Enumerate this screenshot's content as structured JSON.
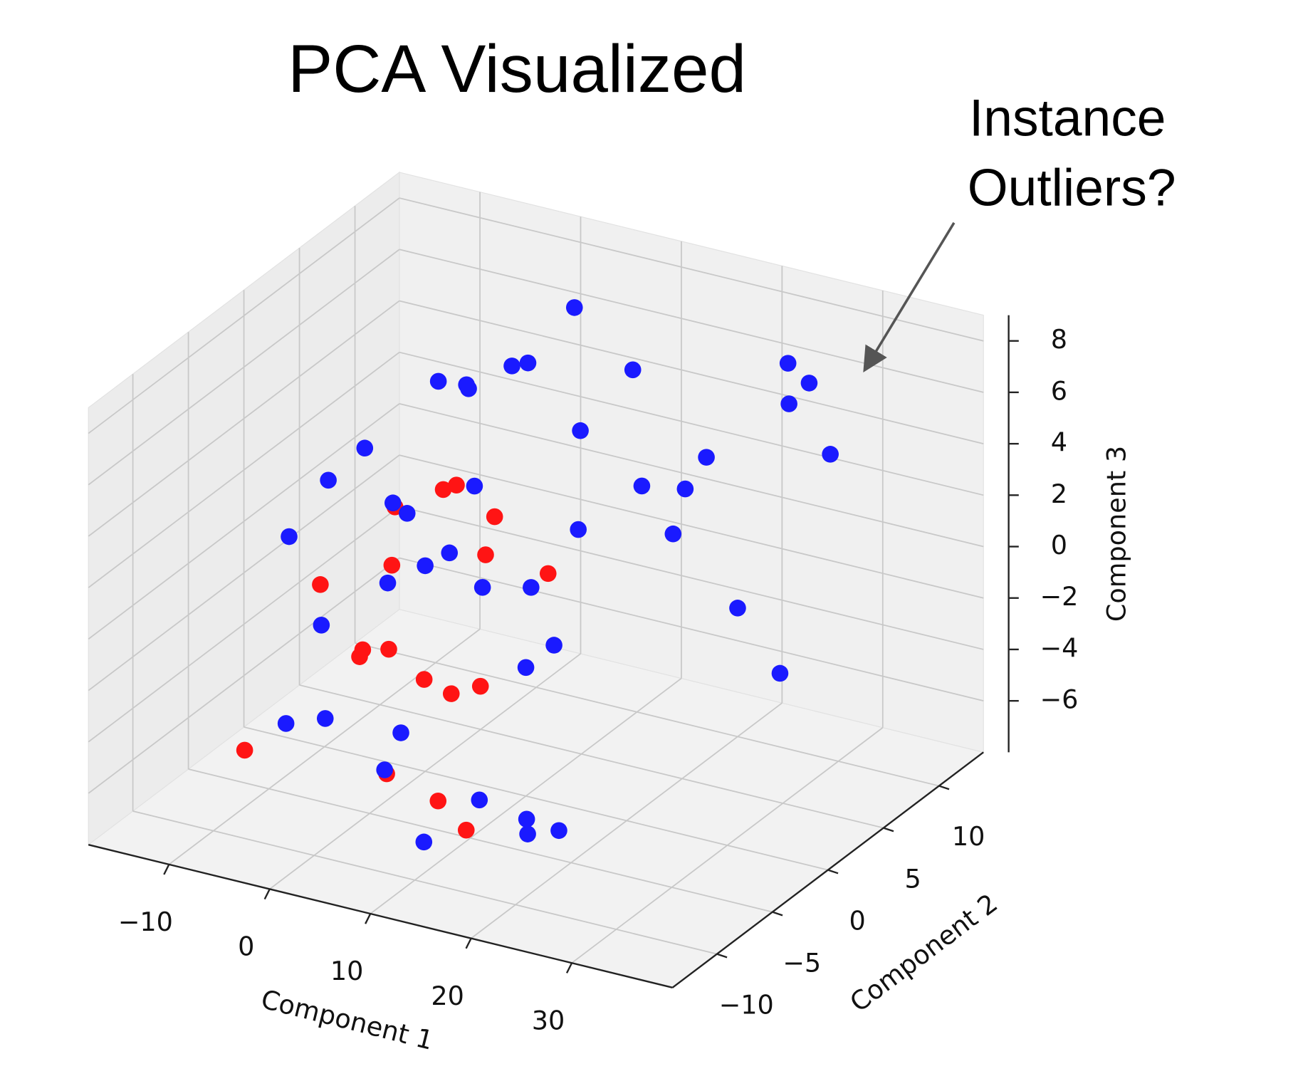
{
  "chart_data": {
    "type": "scatter3d",
    "title": "PCA Visualized",
    "annotation_lines": [
      "Instance",
      "Outliers?"
    ],
    "xlabel": "Component 1",
    "ylabel": "Component 2",
    "zlabel": "Component 3",
    "xlim": [
      -18,
      40
    ],
    "ylim": [
      -14,
      14
    ],
    "zlim": [
      -8,
      9
    ],
    "xticks": [
      {
        "value": -10,
        "label": "−10"
      },
      0,
      10,
      20,
      30
    ],
    "yticks": [
      {
        "value": -10,
        "label": "−10"
      },
      {
        "value": -5,
        "label": "−5"
      },
      0,
      5,
      10
    ],
    "zticks": [
      {
        "value": -6,
        "label": "−6"
      },
      {
        "value": -4,
        "label": "−4"
      },
      {
        "value": -2,
        "label": "−2"
      },
      0,
      2,
      4,
      6,
      8
    ],
    "grid": true,
    "series": [
      {
        "color": "#ff1414",
        "x": [
          -6,
          -4,
          -3,
          -1,
          0,
          1,
          2,
          3,
          4,
          5,
          6,
          7,
          8,
          9,
          10,
          11,
          -8,
          14
        ],
        "y": [
          -4,
          -2,
          0,
          -5,
          -3,
          -1,
          1,
          -6,
          -2,
          -8,
          0,
          -4,
          -1,
          -7,
          2,
          -5,
          -9,
          -9
        ],
        "z": [
          0,
          -3,
          2,
          -2,
          1,
          -4,
          3,
          -1,
          4,
          -5,
          1,
          -3,
          3,
          -6,
          0,
          -2,
          -5,
          -6
        ]
      },
      {
        "color": "#1a1aff",
        "x": [
          -8,
          -7,
          -6,
          -5,
          -4,
          -3,
          -2,
          -1,
          0,
          0,
          1,
          2,
          3,
          4,
          5,
          6,
          7,
          8,
          9,
          10,
          11,
          12,
          13,
          14,
          15,
          16,
          17,
          18,
          19,
          20,
          21,
          12,
          6,
          2,
          -2,
          25,
          26,
          24,
          27,
          22,
          20,
          18
        ],
        "y": [
          -5,
          -3,
          0,
          -8,
          2,
          -6,
          4,
          -2,
          0,
          -9,
          3,
          -4,
          1,
          -7,
          5,
          -1,
          -10,
          2,
          -3,
          0,
          4,
          -6,
          2,
          6,
          -2,
          5,
          8,
          6,
          -8,
          -9,
          -7,
          -11,
          8,
          6,
          3,
          10,
          11,
          11,
          12,
          12,
          10,
          9
        ],
        "z": [
          2,
          -2,
          4,
          -4,
          1,
          5,
          -1,
          3,
          0,
          -3,
          6,
          -5,
          7,
          2,
          -2,
          4,
          -4,
          8,
          1,
          -3,
          5,
          -6,
          2,
          7,
          -1,
          3,
          2,
          1,
          -6,
          -5,
          -6,
          -6,
          8,
          6,
          6,
          7,
          6,
          5,
          3,
          -6,
          -3,
          3
        ]
      }
    ]
  }
}
